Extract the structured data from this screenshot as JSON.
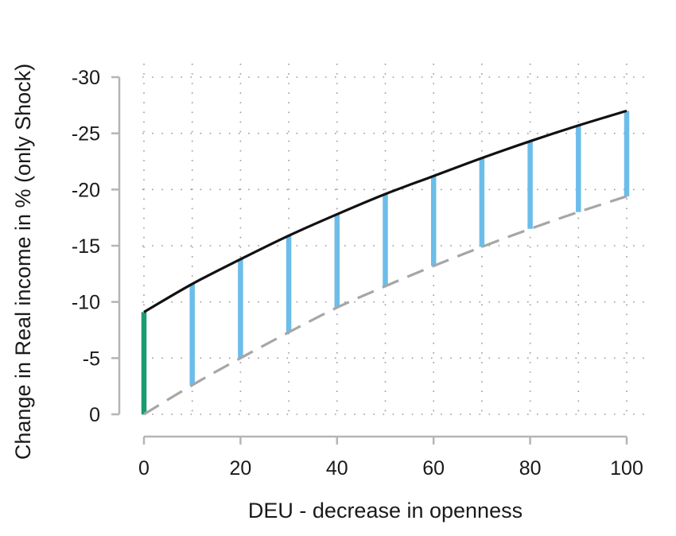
{
  "chart_data": {
    "type": "line",
    "title": "",
    "xlabel": "DEU - decrease in openness",
    "ylabel": "Change in Real income in % (only Shock)",
    "xlim": [
      0,
      100
    ],
    "ylim": [
      0,
      -30
    ],
    "y_axis_inverted": true,
    "grid": true,
    "x_ticks": [
      0,
      20,
      40,
      60,
      80,
      100
    ],
    "x_tick_labels": [
      "0",
      "20",
      "40",
      "60",
      "80",
      "100"
    ],
    "y_ticks": [
      0,
      -5,
      -10,
      -15,
      -20,
      -25,
      -30
    ],
    "y_tick_labels": [
      "0",
      "-5",
      "-10",
      "-15",
      "-20",
      "-25",
      "-30"
    ],
    "series": [
      {
        "style": "solid",
        "color": "#111111",
        "x": [
          0,
          10,
          20,
          30,
          40,
          50,
          60,
          70,
          80,
          90,
          100
        ],
        "y": [
          -9.1,
          -11.6,
          -13.8,
          -15.9,
          -17.8,
          -19.6,
          -21.2,
          -22.8,
          -24.3,
          -25.7,
          -27.0
        ]
      },
      {
        "style": "dashed",
        "color": "#a6a6a6",
        "x": [
          0,
          10,
          20,
          30,
          40,
          50,
          60,
          70,
          80,
          90,
          100
        ],
        "y": [
          0,
          -2.6,
          -5.0,
          -7.3,
          -9.5,
          -11.4,
          -13.2,
          -14.9,
          -16.5,
          -18.0,
          -19.4
        ]
      }
    ],
    "vertical_bars": {
      "colors": {
        "first": "#1a9c6e",
        "rest": "#6cbde9"
      },
      "note_free": true
    }
  }
}
